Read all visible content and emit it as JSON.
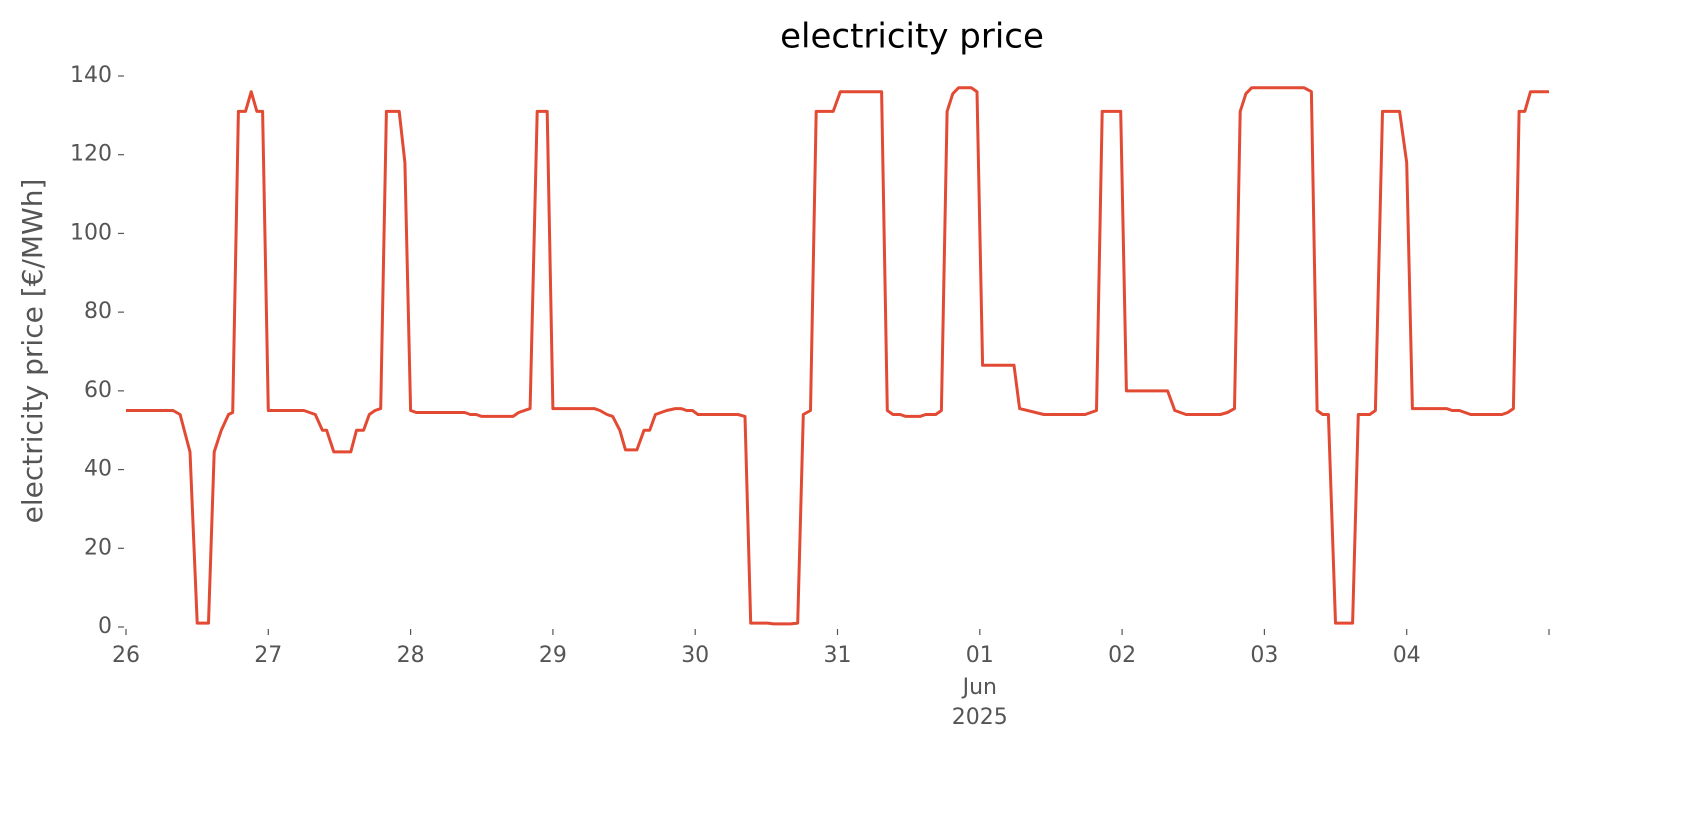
{
  "chart_data": {
    "type": "line",
    "title": "electricity price",
    "ylabel": "electricity price [€/MWh]",
    "x_sublabels": [
      "Jun",
      "2025"
    ],
    "xlim": [
      0,
      10
    ],
    "ylim": [
      0,
      140
    ],
    "xticks": [
      {
        "value": 0,
        "label": "26"
      },
      {
        "value": 1,
        "label": "27"
      },
      {
        "value": 2,
        "label": "28"
      },
      {
        "value": 3,
        "label": "29"
      },
      {
        "value": 4,
        "label": "30"
      },
      {
        "value": 5,
        "label": "31"
      },
      {
        "value": 6,
        "label": "01"
      },
      {
        "value": 7,
        "label": "02"
      },
      {
        "value": 8,
        "label": "03"
      },
      {
        "value": 9,
        "label": "04"
      },
      {
        "value": 10,
        "label": null
      }
    ],
    "yticks": [
      0,
      20,
      40,
      60,
      80,
      100,
      120,
      140
    ],
    "grid": false,
    "x": [
      0,
      0.33,
      0.38,
      0.45,
      0.5,
      0.58,
      0.62,
      0.67,
      0.72,
      0.75,
      0.79,
      0.84,
      0.88,
      0.92,
      0.96,
      1.0,
      1.25,
      1.33,
      1.38,
      1.41,
      1.46,
      1.58,
      1.62,
      1.67,
      1.71,
      1.75,
      1.79,
      1.83,
      1.92,
      1.96,
      2.0,
      2.04,
      2.38,
      2.42,
      2.46,
      2.5,
      2.72,
      2.76,
      2.84,
      2.89,
      2.96,
      3.0,
      3.29,
      3.33,
      3.38,
      3.42,
      3.47,
      3.51,
      3.59,
      3.64,
      3.68,
      3.72,
      3.8,
      3.86,
      3.9,
      3.94,
      3.98,
      4.02,
      4.3,
      4.35,
      4.39,
      4.51,
      4.55,
      4.67,
      4.72,
      4.76,
      4.81,
      4.85,
      4.97,
      5.02,
      5.31,
      5.35,
      5.39,
      5.44,
      5.48,
      5.58,
      5.62,
      5.69,
      5.73,
      5.77,
      5.81,
      5.85,
      5.94,
      5.98,
      6.02,
      6.24,
      6.28,
      6.45,
      6.74,
      6.78,
      6.82,
      6.86,
      6.99,
      7.03,
      7.32,
      7.37,
      7.45,
      7.69,
      7.74,
      7.79,
      7.83,
      7.87,
      7.91,
      8.28,
      8.33,
      8.37,
      8.41,
      8.45,
      8.5,
      8.62,
      8.66,
      8.74,
      8.78,
      8.83,
      8.95,
      9.0,
      9.04,
      9.28,
      9.32,
      9.37,
      9.41,
      9.45,
      9.67,
      9.71,
      9.75,
      9.79,
      9.83,
      9.87,
      10
    ],
    "series": [
      {
        "name": "electricity price",
        "color": "#e24a33",
        "values": [
          55,
          55,
          54,
          44.5,
          1,
          1,
          44.5,
          50,
          54,
          54.5,
          131,
          131,
          136,
          131,
          131,
          55,
          55,
          54,
          50,
          50,
          44.5,
          44.5,
          50,
          50,
          54,
          55,
          55.5,
          131,
          131,
          118,
          55,
          54.5,
          54.5,
          54,
          54,
          53.5,
          53.5,
          54.5,
          55.5,
          131,
          131,
          55.5,
          55.5,
          55,
          54,
          53.5,
          50,
          45,
          45,
          50,
          50,
          54,
          55,
          55.5,
          55.5,
          55,
          55,
          54,
          54,
          53.5,
          1,
          1,
          0.8,
          0.8,
          1,
          54,
          55,
          131,
          131,
          136,
          136,
          55,
          54,
          54,
          53.5,
          53.5,
          54,
          54,
          55,
          131,
          135.5,
          137,
          137,
          136,
          66.5,
          66.5,
          55.5,
          54,
          54,
          54.5,
          55,
          131,
          131,
          60,
          60,
          55,
          54,
          54,
          54.5,
          55.5,
          131,
          135.5,
          137,
          137,
          136,
          55,
          54,
          54,
          1,
          1,
          54,
          54,
          55,
          131,
          131,
          118,
          55.5,
          55.5,
          55,
          55,
          54.5,
          54,
          54,
          54.5,
          55.5,
          131,
          131,
          136,
          136
        ]
      }
    ]
  }
}
